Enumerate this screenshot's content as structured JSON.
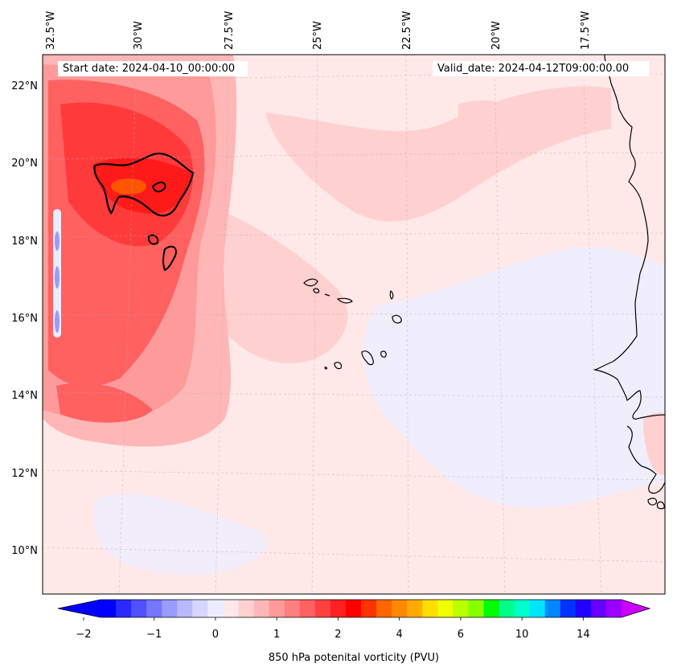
{
  "header": {
    "start_date": "Start date: 2024-04-10_00:00:00",
    "valid_date": "Valid_date: 2024-04-12T09:00:00.00"
  },
  "longitude_labels": [
    "32.5°W",
    "30°W",
    "27.5°W",
    "25°W",
    "22.5°W",
    "20°W",
    "17.5°W"
  ],
  "latitude_labels": [
    "22°N",
    "20°N",
    "18°N",
    "16°N",
    "14°N",
    "12°N",
    "10°N"
  ],
  "colorbar": {
    "label": "850 hPa potenital vorticity (PVU)",
    "tick_labels": [
      "−2",
      "−1",
      "0",
      "1",
      "2",
      "4",
      "6",
      "10",
      "14"
    ],
    "colors": [
      "#0000ff",
      "#2a2aff",
      "#5050ff",
      "#7676ff",
      "#9a9aff",
      "#b8b8ff",
      "#d6d6ff",
      "#ececff",
      "#ffe8e8",
      "#ffd0d0",
      "#ffb6b6",
      "#ff9a9a",
      "#ff7e7e",
      "#ff6060",
      "#ff4040",
      "#ff2020",
      "#ff0000",
      "#ff3300",
      "#ff6600",
      "#ff8800",
      "#ffaa00",
      "#ffdd00",
      "#eeff00",
      "#bbff00",
      "#88ff00",
      "#00ff00",
      "#00ff88",
      "#00ffcc",
      "#00e5ff",
      "#0088ff",
      "#0033ff",
      "#2200ff",
      "#6600ff",
      "#9900ff"
    ]
  },
  "colors": {
    "background": "#ffe8e8",
    "contour": "#000000",
    "coastline": "#000000"
  }
}
